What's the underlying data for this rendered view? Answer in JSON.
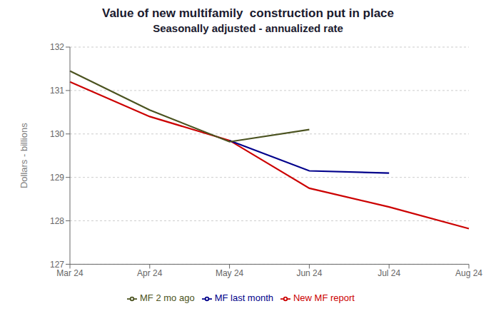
{
  "chart_data": {
    "type": "line",
    "title": "Value of new multifamily  construction put in place",
    "subtitle": "Seasonally adjusted - annualized rate",
    "y_label": "Dollars - billions",
    "categories": [
      "Mar 24",
      "Apr 24",
      "May 24",
      "Jun 24",
      "Jul 24",
      "Aug 24"
    ],
    "series": [
      {
        "name": "New MF report",
        "color": "#cc0000",
        "values": [
          131.2,
          130.4,
          129.85,
          128.75,
          128.32,
          127.82
        ]
      },
      {
        "name": "MF last month",
        "color": "#00008b",
        "values": [
          null,
          null,
          129.85,
          129.15,
          129.1,
          null
        ]
      },
      {
        "name": "MF 2 mo ago",
        "color": "#4b5320",
        "values": [
          131.45,
          130.55,
          129.82,
          130.1,
          null,
          null
        ]
      }
    ],
    "ylim": [
      127,
      132
    ],
    "yticks": [
      127,
      128,
      129,
      130,
      131,
      132
    ],
    "grid": true,
    "legend": "bottom"
  }
}
